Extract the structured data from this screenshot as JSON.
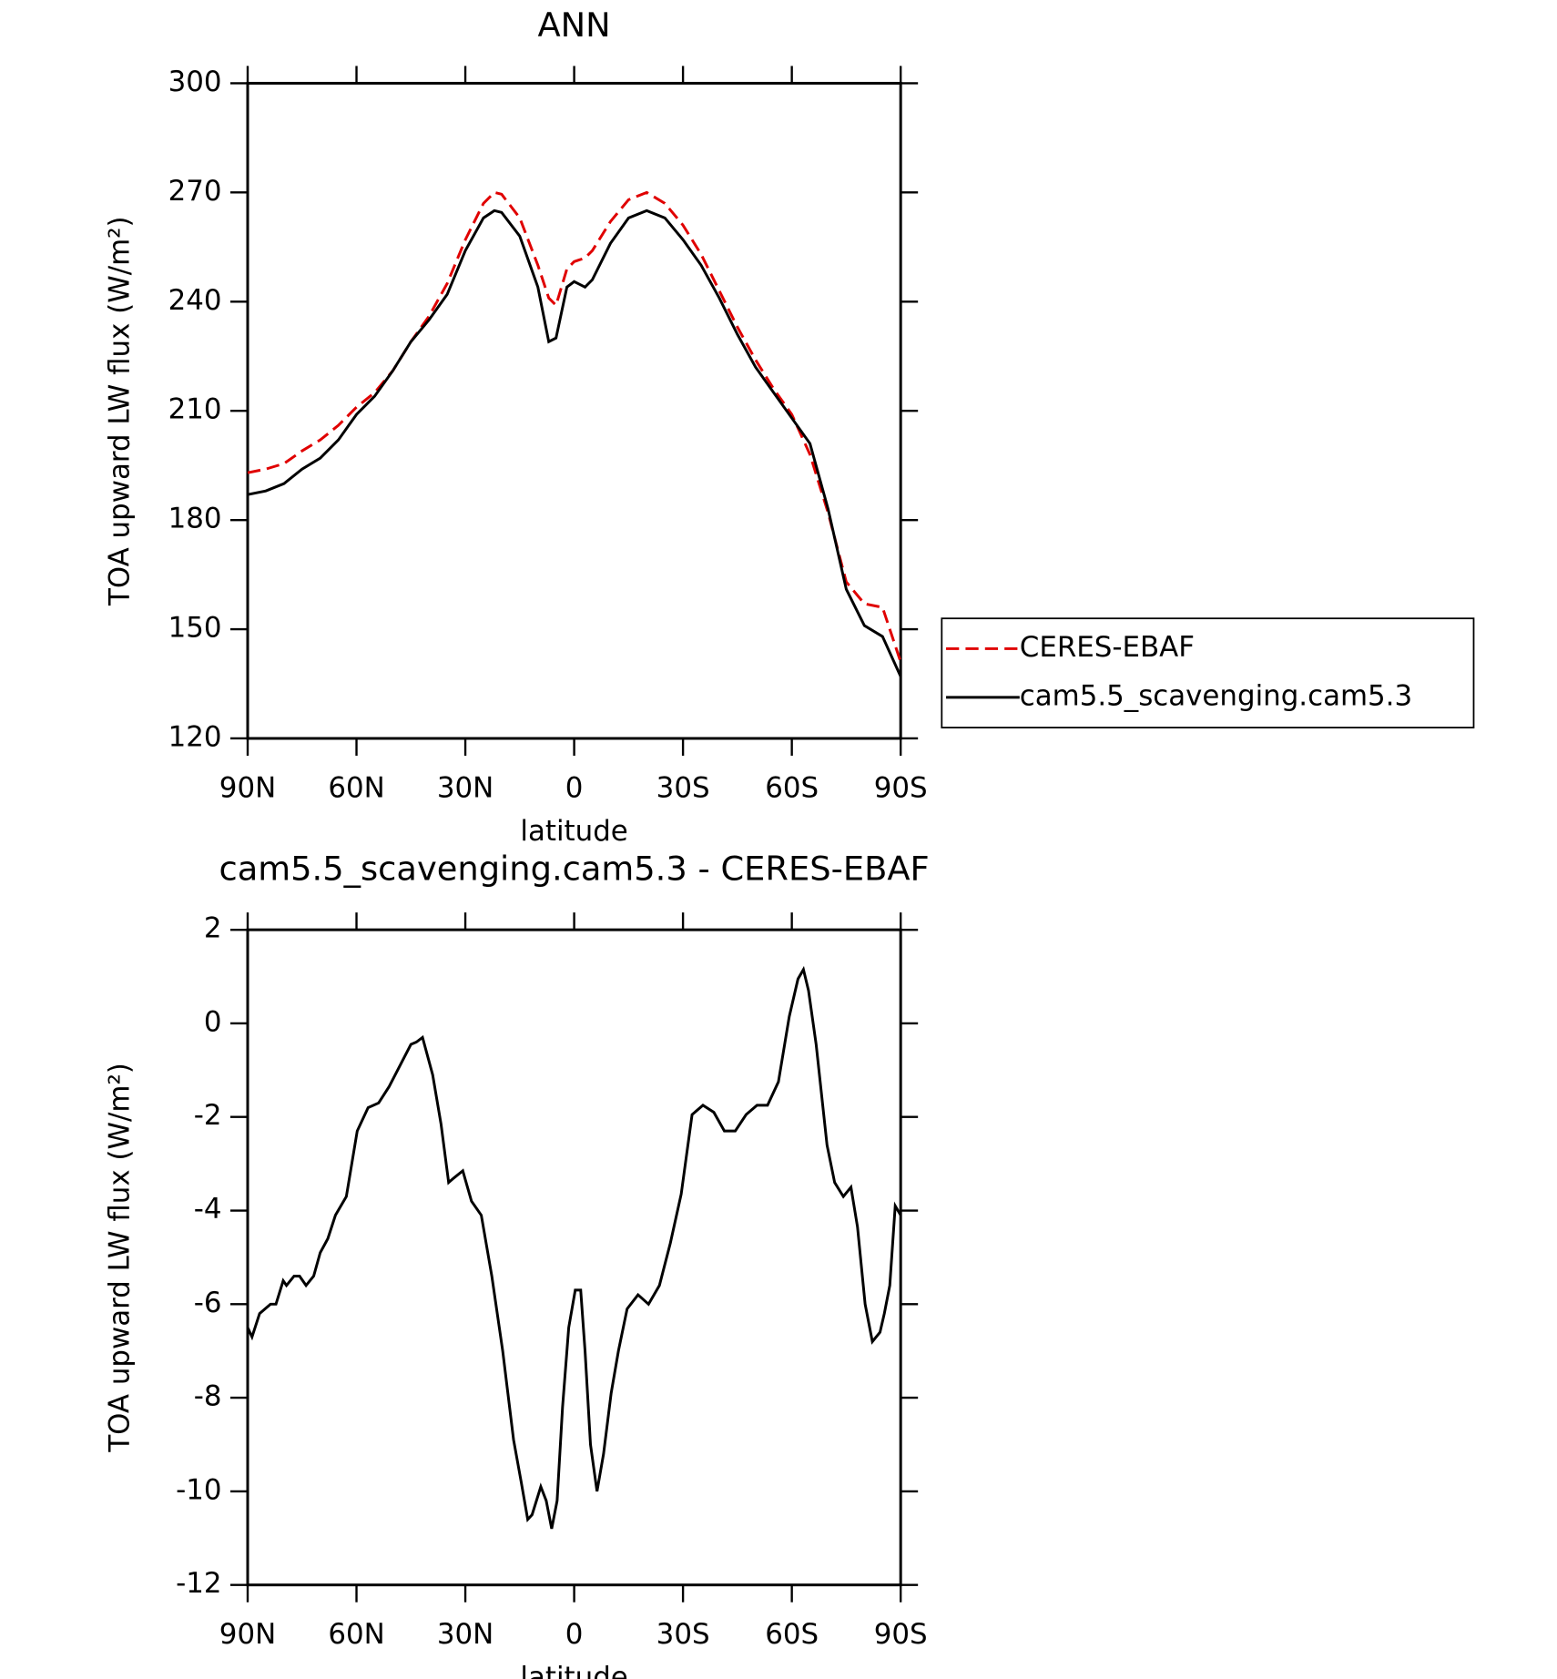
{
  "chart_data": [
    {
      "type": "line",
      "title": "ANN",
      "xlabel": "latitude",
      "ylabel": "TOA upward LW flux (W/m²)",
      "x": [
        90,
        85,
        80,
        75,
        70,
        65,
        60,
        55,
        50,
        45,
        40,
        35,
        30,
        25,
        22,
        20,
        15,
        10,
        7,
        5,
        2,
        0,
        -3,
        -5,
        -10,
        -15,
        -20,
        -25,
        -30,
        -35,
        -40,
        -45,
        -50,
        -55,
        -60,
        -65,
        -70,
        -75,
        -80,
        -85,
        -90
      ],
      "series": [
        {
          "name": "CERES-EBAF",
          "color": "#e00000",
          "style": "dashed",
          "values": [
            193,
            194,
            195.5,
            199,
            202,
            206,
            211,
            215,
            221,
            229,
            236,
            245,
            257,
            267,
            270,
            269.5,
            263,
            250,
            241,
            239,
            249,
            251,
            252,
            254,
            262,
            268,
            270,
            267,
            261,
            253,
            243,
            233,
            224,
            216,
            209,
            198,
            182,
            163,
            157,
            156,
            141
          ]
        },
        {
          "name": "cam5.5_scavenging.cam5.3",
          "color": "#000000",
          "style": "solid",
          "values": [
            187,
            188,
            190,
            194,
            197,
            202,
            209,
            214,
            221,
            229,
            235,
            242,
            254,
            263,
            265,
            264.5,
            258,
            244,
            229,
            230,
            244,
            245.5,
            244,
            246,
            256,
            263,
            265,
            263,
            257,
            250,
            241,
            231,
            222,
            215,
            208,
            201,
            183,
            161,
            151,
            148,
            137
          ]
        }
      ],
      "xlim": [
        90,
        -90
      ],
      "xticks": [
        {
          "value": 90,
          "label": "90N"
        },
        {
          "value": 60,
          "label": "60N"
        },
        {
          "value": 30,
          "label": "30N"
        },
        0,
        {
          "value": -30,
          "label": "30S"
        },
        {
          "value": -60,
          "label": "60S"
        },
        {
          "value": -90,
          "label": "90S"
        }
      ],
      "ylim": [
        120,
        300
      ],
      "yticks": [
        120,
        150,
        180,
        210,
        240,
        270,
        300
      ],
      "legend": "right"
    },
    {
      "type": "line",
      "title": "cam5.5_scavenging.cam5.3 - CERES-EBAF",
      "xlabel": "latitude",
      "ylabel": "TOA upward LW flux (W/m²)",
      "x": [
        90,
        88.8,
        86.7,
        83.7,
        82.2,
        80.2,
        79.3,
        77.2,
        75.7,
        73.9,
        71.8,
        70.0,
        67.9,
        65.8,
        62.8,
        59.8,
        56.8,
        53.9,
        51.0,
        48.0,
        45.0,
        43.5,
        41.8,
        39.0,
        36.7,
        34.6,
        33.1,
        30.7,
        28.3,
        25.6,
        22.7,
        19.7,
        16.7,
        14.6,
        12.8,
        11.6,
        9.2,
        7.7,
        6.2,
        4.7,
        3.2,
        1.5,
        -0.3,
        -1.8,
        -3.0,
        -4.5,
        -6.3,
        -8.1,
        -10.2,
        -12.2,
        -14.6,
        -17.6,
        -20.5,
        -23.5,
        -26.5,
        -29.5,
        -32.5,
        -35.5,
        -38.5,
        -41.4,
        -44.4,
        -47.4,
        -50.4,
        -53.3,
        -56.3,
        -59.3,
        -61.7,
        -63.2,
        -64.6,
        -66.7,
        -69.7,
        -71.8,
        -74.2,
        -76.3,
        -78.1,
        -80.2,
        -82.2,
        -84.3,
        -85.5,
        -87.0,
        -88.5,
        -90
      ],
      "series": [
        {
          "name": "cam5.5_scavenging.cam5.3 - CERES-EBAF",
          "color": "#000000",
          "style": "solid",
          "values": [
            -6.5,
            -6.7,
            -6.2,
            -6.0,
            -6.0,
            -5.5,
            -5.6,
            -5.4,
            -5.4,
            -5.6,
            -5.4,
            -4.9,
            -4.6,
            -4.1,
            -3.7,
            -2.3,
            -1.8,
            -1.7,
            -1.35,
            -0.9,
            -0.45,
            -0.4,
            -0.3,
            -1.1,
            -2.15,
            -3.4,
            -3.3,
            -3.15,
            -3.8,
            -4.1,
            -5.4,
            -7.0,
            -8.9,
            -9.8,
            -10.6,
            -10.5,
            -9.9,
            -10.2,
            -10.8,
            -10.2,
            -8.2,
            -6.5,
            -5.7,
            -5.7,
            -7.0,
            -9.0,
            -10.0,
            -9.2,
            -7.9,
            -7.0,
            -6.1,
            -5.8,
            -6.0,
            -5.6,
            -4.7,
            -3.65,
            -1.95,
            -1.75,
            -1.9,
            -2.3,
            -2.3,
            -1.95,
            -1.75,
            -1.75,
            -1.25,
            0.15,
            0.95,
            1.15,
            0.7,
            -0.45,
            -2.6,
            -3.4,
            -3.7,
            -3.5,
            -4.35,
            -6.0,
            -6.8,
            -6.6,
            -6.2,
            -5.6,
            -3.9,
            -4.1
          ]
        }
      ],
      "xlim": [
        90,
        -90
      ],
      "xticks": [
        {
          "value": 90,
          "label": "90N"
        },
        {
          "value": 60,
          "label": "60N"
        },
        {
          "value": 30,
          "label": "30N"
        },
        0,
        {
          "value": -30,
          "label": "30S"
        },
        {
          "value": -60,
          "label": "60S"
        },
        {
          "value": -90,
          "label": "90S"
        }
      ],
      "ylim": [
        -12,
        2
      ],
      "yticks": [
        -12,
        -10,
        -8,
        -6,
        -4,
        -2,
        0,
        2
      ]
    }
  ]
}
